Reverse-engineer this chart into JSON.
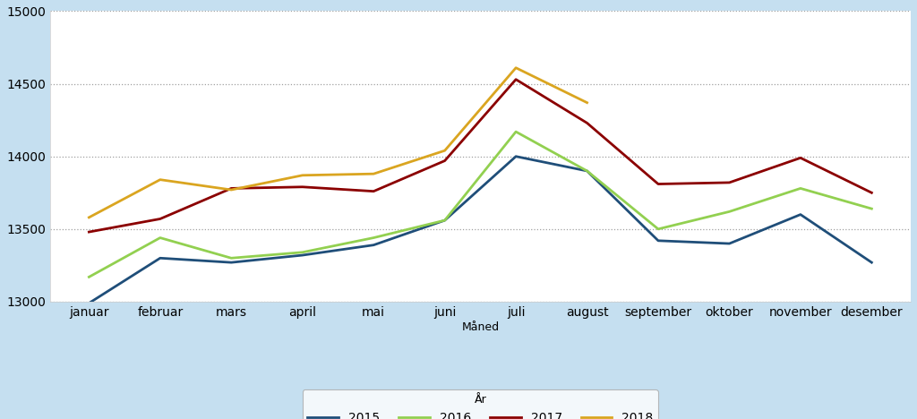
{
  "months": [
    "januar",
    "februar",
    "mars",
    "april",
    "mai",
    "juni",
    "juli",
    "august",
    "september",
    "oktober",
    "november",
    "desember"
  ],
  "series": {
    "2015": [
      12990,
      13300,
      13270,
      13320,
      13390,
      13560,
      14000,
      13900,
      13420,
      13400,
      13600,
      13270
    ],
    "2016": [
      13170,
      13440,
      13300,
      13340,
      13440,
      13560,
      14170,
      13900,
      13500,
      13620,
      13780,
      13640
    ],
    "2017": [
      13480,
      13570,
      13780,
      13790,
      13760,
      13970,
      14530,
      14230,
      13810,
      13820,
      13990,
      13750
    ],
    "2018": [
      13580,
      13840,
      13770,
      13870,
      13880,
      14040,
      14610,
      14370,
      null,
      null,
      null,
      null
    ]
  },
  "colors": {
    "2015": "#1f4e79",
    "2016": "#92d050",
    "2017": "#8b0000",
    "2018": "#daa520"
  },
  "xlabel": "Måned",
  "xlabel2": "År",
  "ylim": [
    13000,
    15000
  ],
  "yticks": [
    13000,
    13500,
    14000,
    14500,
    15000
  ],
  "plot_bg": "#ffffff",
  "figure_bg": "#c5dff0",
  "grid_color": "#a0a0a0",
  "linewidth": 2.0
}
